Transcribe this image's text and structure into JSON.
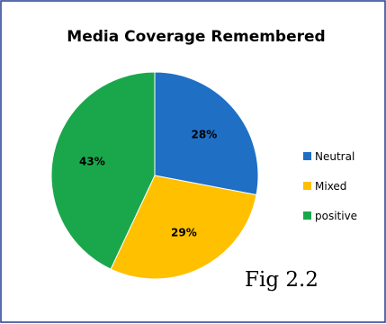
{
  "chart_data": {
    "type": "pie",
    "title": "Media Coverage Remembered",
    "categories": [
      "Neutral",
      "Mixed",
      "positive"
    ],
    "values": [
      28,
      29,
      43
    ],
    "labels": [
      "28%",
      "29%",
      "43%"
    ],
    "colors": [
      "#1f6fc5",
      "#ffc000",
      "#1aa74c"
    ],
    "legend_position": "right",
    "start_angle_deg": 0,
    "direction": "clockwise"
  },
  "caption": "Fig 2.2"
}
